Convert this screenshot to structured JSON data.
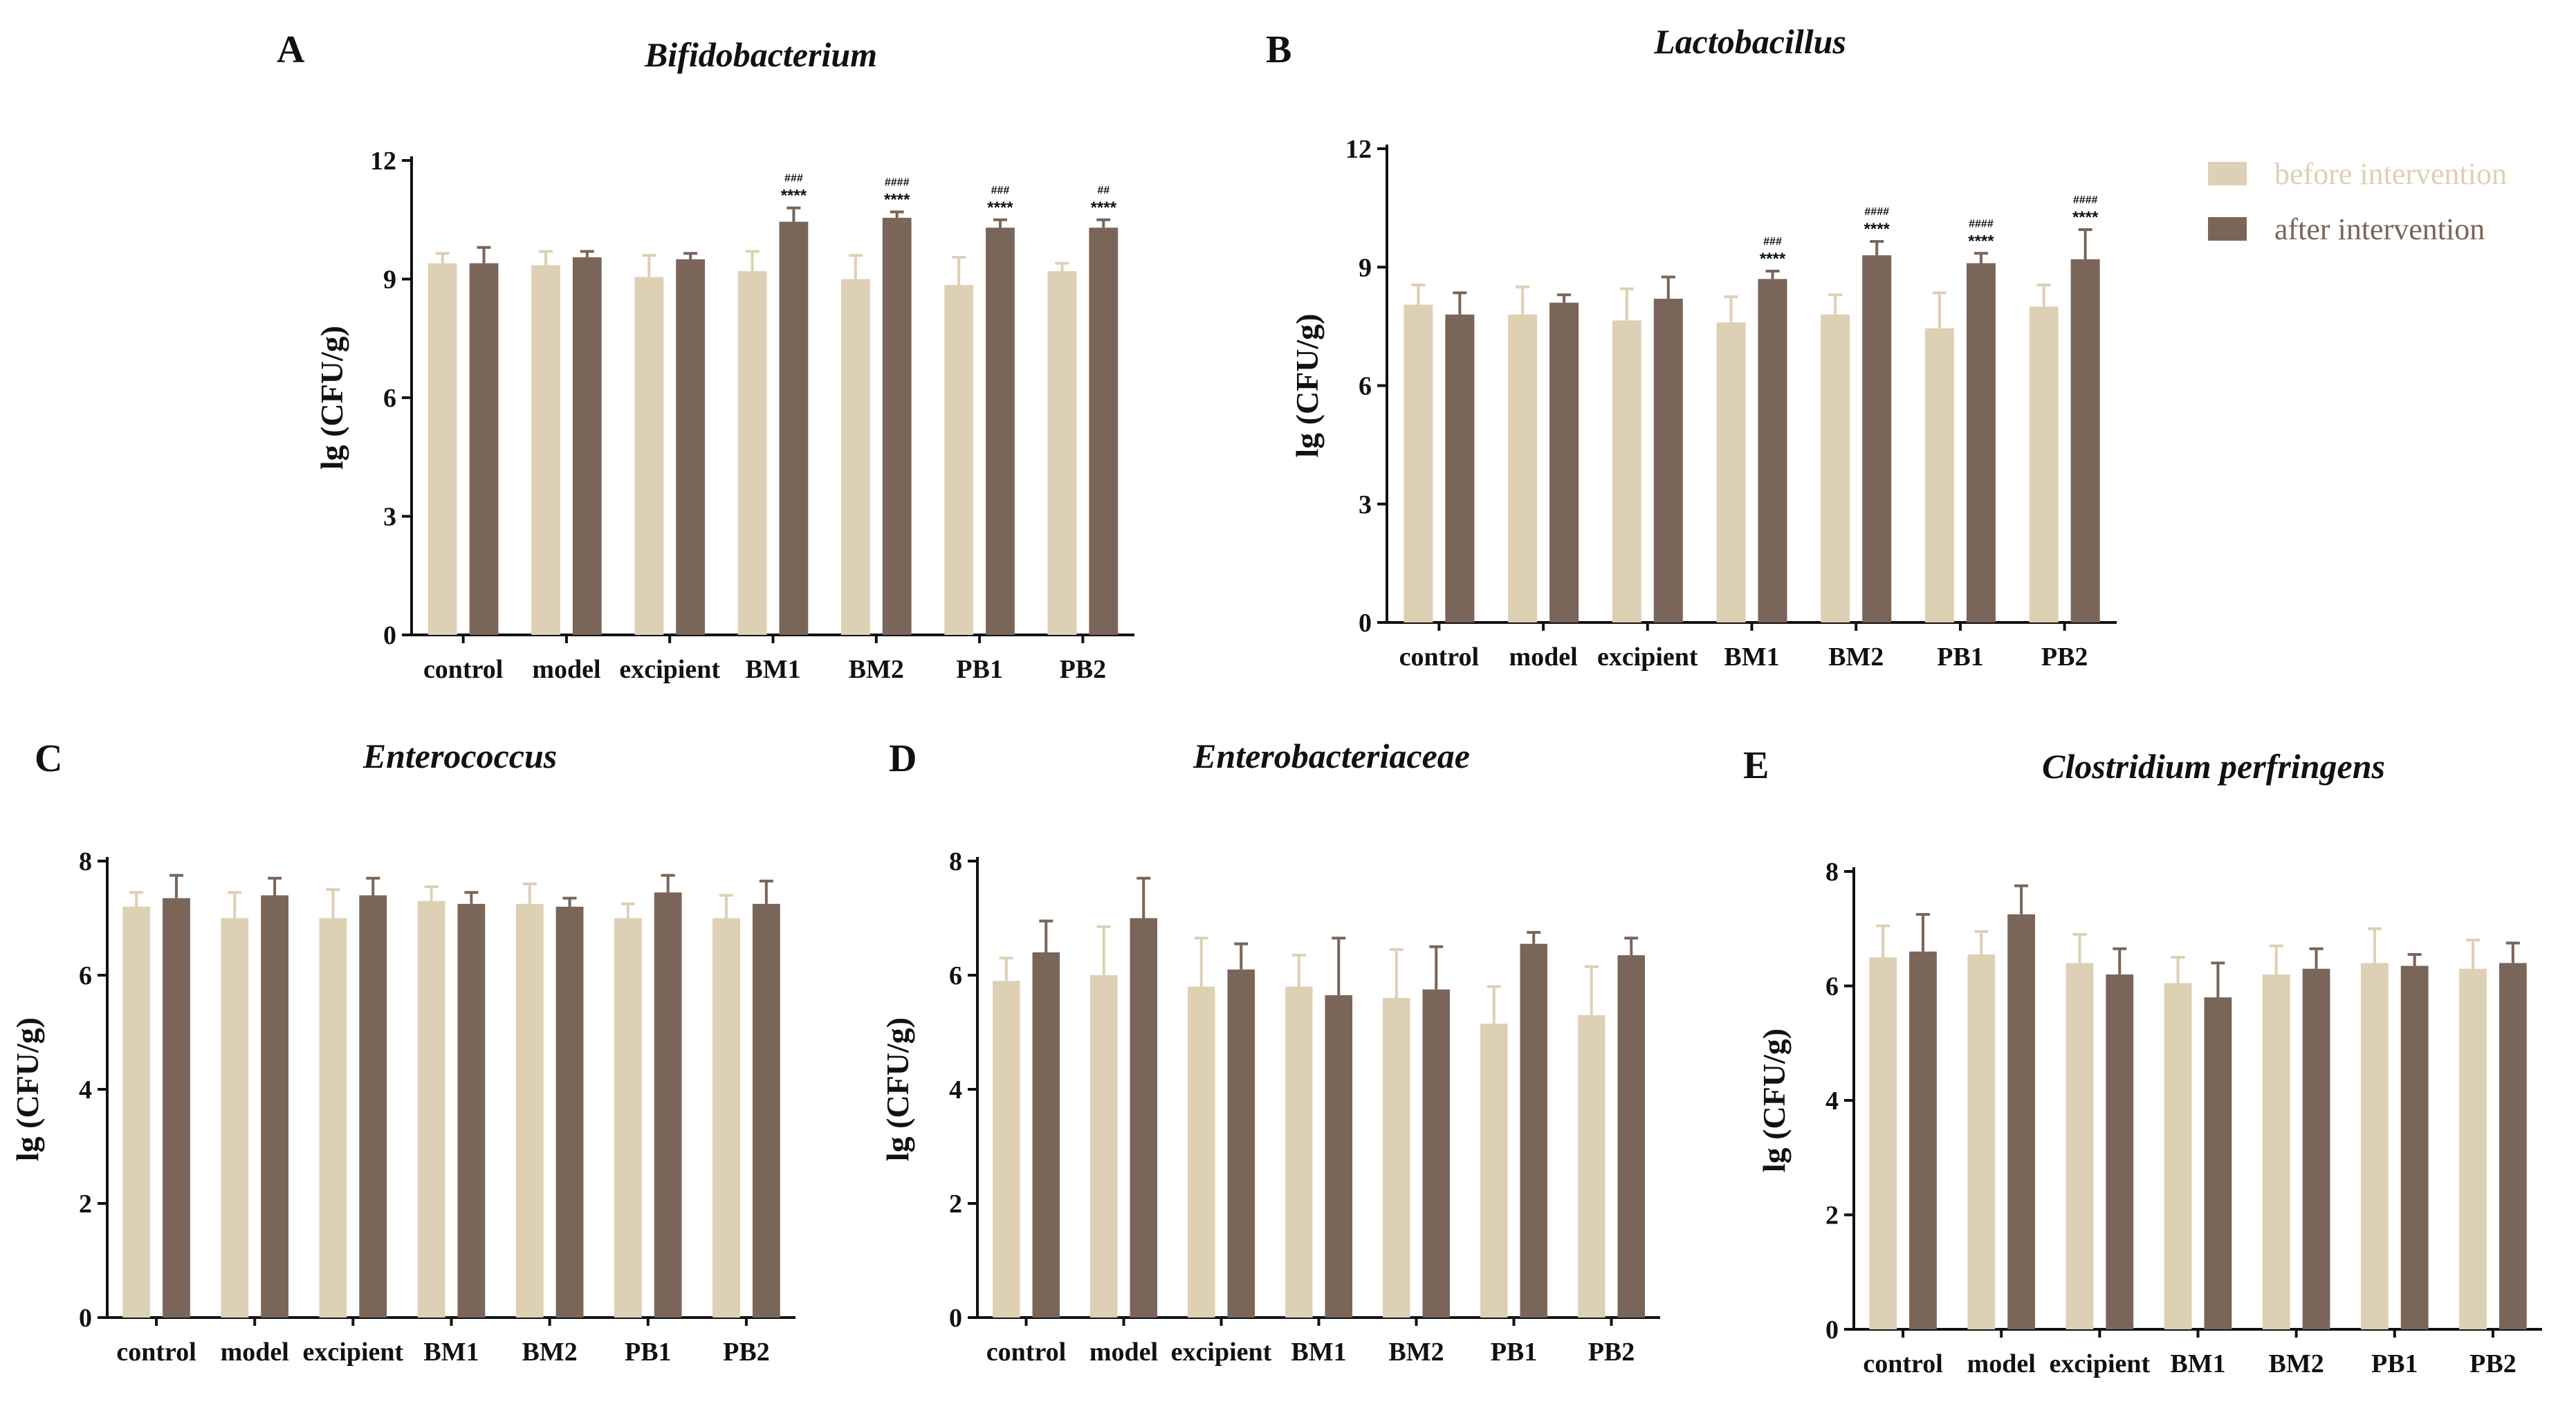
{
  "colors": {
    "before": "#ddd0b4",
    "after": "#7a6559",
    "axis": "#111111"
  },
  "legend": {
    "before_label": "before intervention",
    "after_label": "after intervention"
  },
  "chart_data": [
    {
      "panel": "A",
      "type": "bar",
      "title": "Bifidobacterium",
      "ylabel": "lg (CFU/g)",
      "ylim": [
        0,
        12
      ],
      "yticks": [
        "0",
        "3",
        "6",
        "9",
        "12"
      ],
      "categories": [
        "control",
        "model",
        "excipient",
        "BM1",
        "BM2",
        "PB1",
        "PB2"
      ],
      "series": [
        {
          "name": "before intervention",
          "values": [
            9.4,
            9.35,
            9.05,
            9.2,
            9.0,
            8.85,
            9.2
          ],
          "errors": [
            0.25,
            0.35,
            0.55,
            0.5,
            0.6,
            0.7,
            0.2
          ]
        },
        {
          "name": "after intervention",
          "values": [
            9.4,
            9.55,
            9.5,
            10.45,
            10.55,
            10.3,
            10.3
          ],
          "errors": [
            0.4,
            0.15,
            0.15,
            0.35,
            0.15,
            0.2,
            0.2
          ]
        }
      ],
      "significance": [
        {
          "category": "BM1",
          "hash": "###",
          "star": "****"
        },
        {
          "category": "BM2",
          "hash": "####",
          "star": "****"
        },
        {
          "category": "PB1",
          "hash": "###",
          "star": "****"
        },
        {
          "category": "PB2",
          "hash": "##",
          "star": "****"
        }
      ]
    },
    {
      "panel": "B",
      "type": "bar",
      "title": "Lactobacillus",
      "ylabel": "lg (CFU/g)",
      "ylim": [
        0,
        12
      ],
      "yticks": [
        "0",
        "3",
        "6",
        "9",
        "12"
      ],
      "categories": [
        "control",
        "model",
        "excipient",
        "BM1",
        "BM2",
        "PB1",
        "PB2"
      ],
      "series": [
        {
          "name": "before intervention",
          "values": [
            8.05,
            7.8,
            7.65,
            7.6,
            7.8,
            7.45,
            8.0
          ],
          "errors": [
            0.5,
            0.7,
            0.8,
            0.65,
            0.5,
            0.9,
            0.55
          ]
        },
        {
          "name": "after intervention",
          "values": [
            7.8,
            8.1,
            8.2,
            8.7,
            9.3,
            9.1,
            9.2
          ],
          "errors": [
            0.55,
            0.2,
            0.55,
            0.2,
            0.35,
            0.25,
            0.75
          ]
        }
      ],
      "significance": [
        {
          "category": "BM1",
          "hash": "###",
          "star": "****"
        },
        {
          "category": "BM2",
          "hash": "####",
          "star": "****"
        },
        {
          "category": "PB1",
          "hash": "####",
          "star": "****"
        },
        {
          "category": "PB2",
          "hash": "####",
          "star": "****"
        }
      ]
    },
    {
      "panel": "C",
      "type": "bar",
      "title": "Enterococcus",
      "ylabel": "lg (CFU/g)",
      "ylim": [
        0,
        8
      ],
      "yticks": [
        "0",
        "2",
        "4",
        "6",
        "8"
      ],
      "categories": [
        "control",
        "model",
        "excipient",
        "BM1",
        "BM2",
        "PB1",
        "PB2"
      ],
      "series": [
        {
          "name": "before intervention",
          "values": [
            7.2,
            7.0,
            7.0,
            7.3,
            7.25,
            7.0,
            7.0
          ],
          "errors": [
            0.25,
            0.45,
            0.5,
            0.25,
            0.35,
            0.25,
            0.4
          ]
        },
        {
          "name": "after intervention",
          "values": [
            7.35,
            7.4,
            7.4,
            7.25,
            7.2,
            7.45,
            7.25
          ],
          "errors": [
            0.4,
            0.3,
            0.3,
            0.2,
            0.15,
            0.3,
            0.4
          ]
        }
      ],
      "significance": []
    },
    {
      "panel": "D",
      "type": "bar",
      "title": "Enterobacteriaceae",
      "ylabel": "lg (CFU/g)",
      "ylim": [
        0,
        8
      ],
      "yticks": [
        "0",
        "2",
        "4",
        "6",
        "8"
      ],
      "categories": [
        "control",
        "model",
        "excipient",
        "BM1",
        "BM2",
        "PB1",
        "PB2"
      ],
      "series": [
        {
          "name": "before intervention",
          "values": [
            5.9,
            6.0,
            5.8,
            5.8,
            5.6,
            5.15,
            5.3
          ],
          "errors": [
            0.4,
            0.85,
            0.85,
            0.55,
            0.85,
            0.65,
            0.85
          ]
        },
        {
          "name": "after intervention",
          "values": [
            6.4,
            7.0,
            6.1,
            5.65,
            5.75,
            6.55,
            6.35
          ],
          "errors": [
            0.55,
            0.7,
            0.45,
            1.0,
            0.75,
            0.2,
            0.3
          ]
        }
      ],
      "significance": []
    },
    {
      "panel": "E",
      "type": "bar",
      "title": "Clostridium perfringens",
      "ylabel": "lg (CFU/g)",
      "ylim": [
        0,
        8
      ],
      "yticks": [
        "0",
        "2",
        "4",
        "6",
        "8"
      ],
      "categories": [
        "control",
        "model",
        "excipient",
        "BM1",
        "BM2",
        "PB1",
        "PB2"
      ],
      "series": [
        {
          "name": "before intervention",
          "values": [
            6.5,
            6.55,
            6.4,
            6.05,
            6.2,
            6.4,
            6.3
          ],
          "errors": [
            0.55,
            0.4,
            0.5,
            0.45,
            0.5,
            0.6,
            0.5
          ]
        },
        {
          "name": "after intervention",
          "values": [
            6.6,
            7.25,
            6.2,
            5.8,
            6.3,
            6.35,
            6.4
          ],
          "errors": [
            0.65,
            0.5,
            0.45,
            0.6,
            0.35,
            0.2,
            0.35
          ]
        }
      ],
      "significance": []
    }
  ]
}
